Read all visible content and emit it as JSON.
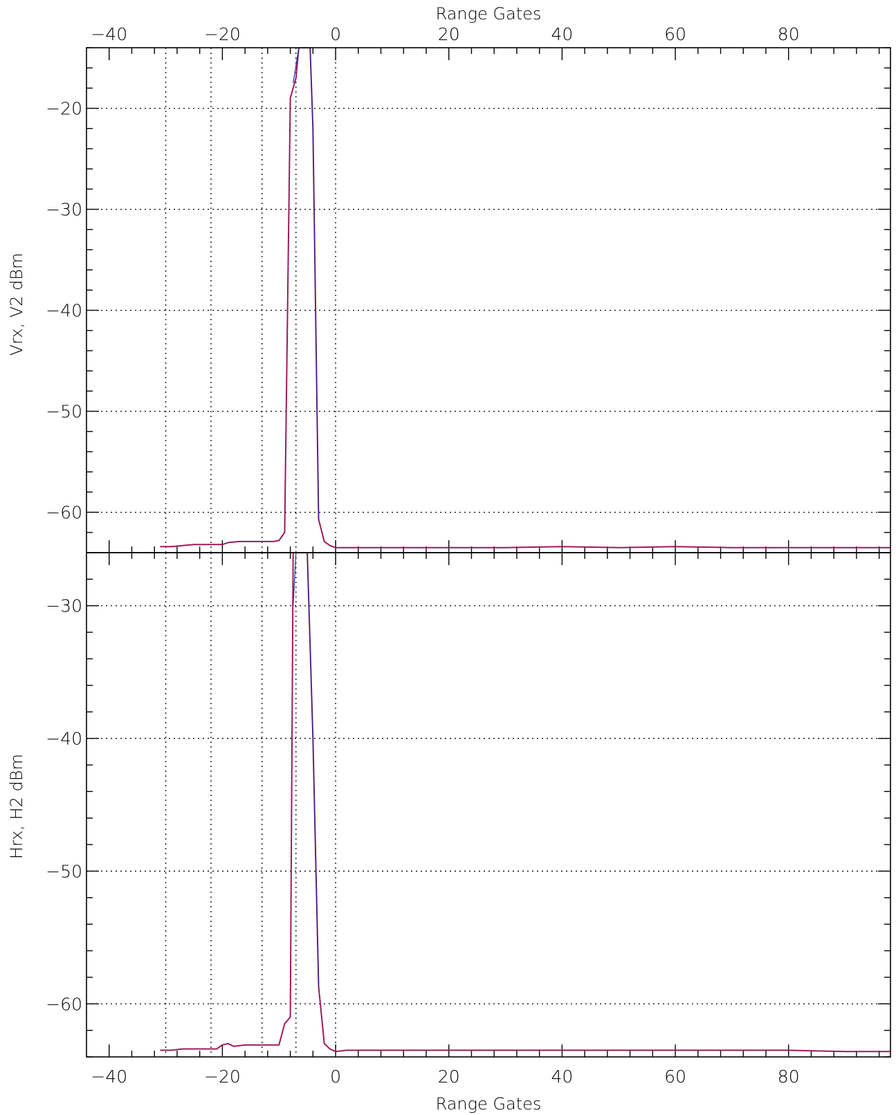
{
  "colors": {
    "line_primary": "#9b1b5a",
    "line_secondary": "#2a2a9c",
    "grid": "#000000",
    "frame": "#000000"
  },
  "chart_data": [
    {
      "type": "line",
      "title": "",
      "xlabel": "Range Gates",
      "ylabel": "Vrx, V2 dBm",
      "xlim": [
        -44,
        98
      ],
      "ylim": [
        -64,
        -14
      ],
      "xticks": [
        -40,
        -20,
        0,
        20,
        40,
        60,
        80
      ],
      "yticks": [
        -20,
        -30,
        -40,
        -50,
        -60
      ],
      "x_gridlines": [
        -30,
        -22,
        -13,
        -7,
        0
      ],
      "y_gridlines": [
        -20,
        -30,
        -40,
        -50,
        -60
      ],
      "grid": true,
      "series": [
        {
          "x": [
            -31,
            -29,
            -27,
            -25,
            -23,
            -21,
            -20,
            -19,
            -17,
            -15,
            -13,
            -11,
            -10,
            -9,
            -8,
            -7,
            -6.5,
            -5.5,
            -4.5,
            -4,
            -3,
            -2,
            -1,
            0,
            2,
            5,
            10,
            20,
            30,
            40,
            50,
            60,
            70,
            80,
            90,
            98
          ],
          "y": [
            -63.4,
            -63.4,
            -63.3,
            -63.2,
            -63.2,
            -63.2,
            -63.2,
            -63.0,
            -62.9,
            -62.9,
            -62.9,
            -62.9,
            -62.8,
            -62.0,
            -19.0,
            -17.0,
            -14.0,
            -14.0,
            -14.0,
            -22.0,
            -60.7,
            -62.9,
            -63.3,
            -63.5,
            -63.5,
            -63.5,
            -63.5,
            -63.5,
            -63.5,
            -63.4,
            -63.5,
            -63.4,
            -63.5,
            -63.5,
            -63.5,
            -63.5
          ]
        },
        {
          "x": [
            -7.5,
            -6.5,
            -5.5,
            -4.5,
            -4,
            -3
          ],
          "y": [
            -17.5,
            -14.0,
            -14.0,
            -14.0,
            -22.0,
            -60.7
          ]
        }
      ]
    },
    {
      "type": "line",
      "title": "",
      "xlabel": "Range Gates",
      "ylabel": "Hrx, H2 dBm",
      "xlim": [
        -44,
        98
      ],
      "ylim": [
        -64,
        -26
      ],
      "xticks": [
        -40,
        -20,
        0,
        20,
        40,
        60,
        80
      ],
      "yticks": [
        -30,
        -40,
        -50,
        -60
      ],
      "x_gridlines": [
        -30,
        -22,
        -13,
        -7,
        0
      ],
      "y_gridlines": [
        -30,
        -40,
        -50,
        -60
      ],
      "grid": true,
      "series": [
        {
          "x": [
            -31,
            -29,
            -27,
            -25,
            -23,
            -21,
            -20,
            -19,
            -18,
            -16,
            -14,
            -12,
            -10,
            -9,
            -8,
            -7.5,
            -7,
            -5,
            -4,
            -3,
            -2,
            -1,
            0,
            2,
            5,
            10,
            20,
            30,
            40,
            50,
            60,
            70,
            80,
            90,
            98
          ],
          "y": [
            -63.5,
            -63.5,
            -63.4,
            -63.4,
            -63.4,
            -63.4,
            -63.1,
            -63.0,
            -63.2,
            -63.1,
            -63.1,
            -63.1,
            -63.1,
            -61.5,
            -61.0,
            -26.0,
            -26.0,
            -26.0,
            -40.0,
            -58.7,
            -63.0,
            -63.4,
            -63.6,
            -63.5,
            -63.5,
            -63.5,
            -63.5,
            -63.5,
            -63.5,
            -63.5,
            -63.5,
            -63.5,
            -63.5,
            -63.6,
            -63.6
          ]
        },
        {
          "x": [
            -7.5,
            -7,
            -5,
            -4,
            -3
          ],
          "y": [
            -30.0,
            -26.0,
            -26.0,
            -40.0,
            -58.7
          ]
        }
      ]
    }
  ]
}
